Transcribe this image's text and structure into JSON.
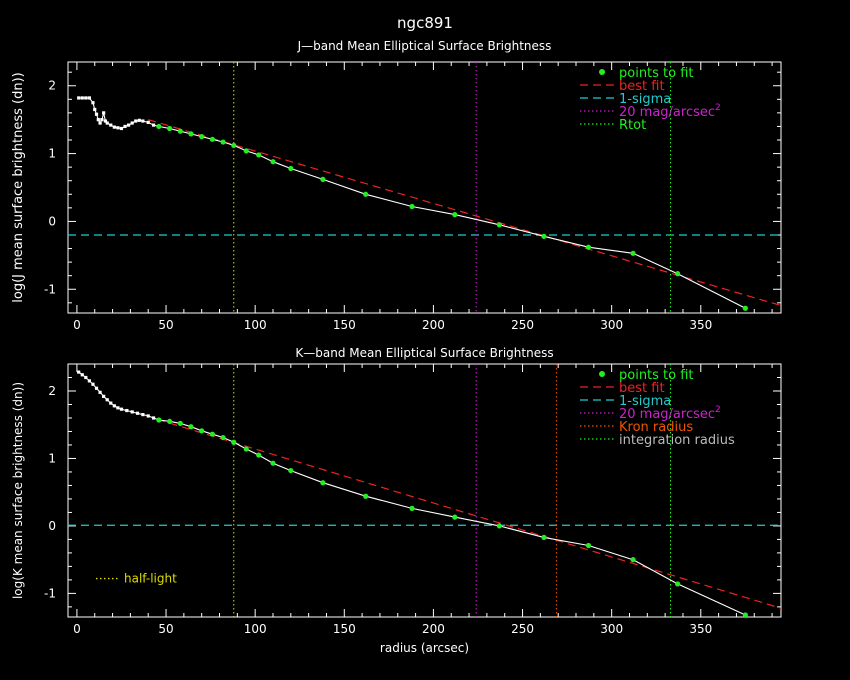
{
  "title": "ngc891",
  "colors": {
    "background": "#000000",
    "axes": "#ffffff",
    "data": "#ffffff",
    "fit_points": "#22ee22",
    "best_fit": "#ee2222",
    "sigma": "#22cccc",
    "mag20": "#cc22cc",
    "rtot": "#22ee22",
    "kron": "#ee5500",
    "integration": "#22ee22",
    "half_light": "#dddd00"
  },
  "chart_data": [
    {
      "type": "line",
      "title": "J—band Mean Elliptical Surface Brightness",
      "ylabel": "log(J mean surface brightness (dn))",
      "xlabel": "",
      "xlim": [
        -5,
        395
      ],
      "ylim": [
        -1.35,
        2.35
      ],
      "x_ticks": [
        "0",
        "50",
        "100",
        "150",
        "200",
        "250",
        "300",
        "350"
      ],
      "y_ticks": [
        "-1",
        "0",
        "1",
        "2"
      ],
      "legend": [
        "points to fit",
        "best fit",
        "1-sigma",
        "20 mag/arcsec",
        "Rtot"
      ],
      "legend_position": "top-right",
      "one_sigma": -0.2,
      "vlines": {
        "mag20": 224,
        "rtot": [
          88,
          333
        ]
      },
      "best_fit": [
        [
          40,
          1.5
        ],
        [
          395,
          -1.24
        ]
      ],
      "profile_inner": [
        [
          1,
          1.82
        ],
        [
          3,
          1.82
        ],
        [
          5,
          1.82
        ],
        [
          7,
          1.82
        ],
        [
          9,
          1.75
        ],
        [
          10,
          1.65
        ],
        [
          11,
          1.58
        ],
        [
          12,
          1.5
        ],
        [
          13,
          1.45
        ],
        [
          14,
          1.5
        ],
        [
          15,
          1.6
        ],
        [
          16,
          1.48
        ],
        [
          17,
          1.45
        ],
        [
          19,
          1.42
        ],
        [
          21,
          1.39
        ],
        [
          23,
          1.38
        ],
        [
          25,
          1.37
        ],
        [
          27,
          1.4
        ],
        [
          29,
          1.42
        ],
        [
          31,
          1.45
        ],
        [
          33,
          1.48
        ],
        [
          35,
          1.49
        ],
        [
          37,
          1.48
        ],
        [
          40,
          1.46
        ],
        [
          43,
          1.42
        ]
      ],
      "fit_points": [
        [
          46,
          1.4
        ],
        [
          52,
          1.37
        ],
        [
          58,
          1.33
        ],
        [
          64,
          1.29
        ],
        [
          70,
          1.25
        ],
        [
          76,
          1.21
        ],
        [
          82,
          1.17
        ],
        [
          88,
          1.12
        ],
        [
          95,
          1.04
        ],
        [
          102,
          0.98
        ],
        [
          110,
          0.88
        ],
        [
          120,
          0.78
        ],
        [
          138,
          0.62
        ],
        [
          162,
          0.4
        ],
        [
          188,
          0.22
        ],
        [
          212,
          0.1
        ],
        [
          237,
          -0.05
        ],
        [
          262,
          -0.22
        ],
        [
          287,
          -0.38
        ],
        [
          312,
          -0.47
        ],
        [
          337,
          -0.77
        ],
        [
          375,
          -1.28
        ]
      ]
    },
    {
      "type": "line",
      "title": "K—band Mean Elliptical Surface Brightness",
      "ylabel": "log(K mean surface brightness (dn))",
      "xlabel": "radius (arcsec)",
      "xlim": [
        -5,
        395
      ],
      "ylim": [
        -1.35,
        2.4
      ],
      "x_ticks": [
        "0",
        "50",
        "100",
        "150",
        "200",
        "250",
        "300",
        "350"
      ],
      "y_ticks": [
        "-1",
        "0",
        "1",
        "2"
      ],
      "legend": [
        "points to fit",
        "best fit",
        "1-sigma",
        "20 mag/arcsec",
        "Kron radius",
        "integration radius"
      ],
      "legend_position": "top-right",
      "half_light_label": "half-light",
      "one_sigma": 0.01,
      "vlines": {
        "mag20": 224,
        "kron": 269,
        "integration": [
          88,
          333
        ]
      },
      "best_fit": [
        [
          45,
          1.58
        ],
        [
          395,
          -1.22
        ]
      ],
      "profile_inner": [
        [
          1,
          2.28
        ],
        [
          3,
          2.24
        ],
        [
          5,
          2.2
        ],
        [
          7,
          2.15
        ],
        [
          9,
          2.1
        ],
        [
          11,
          2.04
        ],
        [
          13,
          1.98
        ],
        [
          15,
          1.92
        ],
        [
          17,
          1.87
        ],
        [
          19,
          1.82
        ],
        [
          21,
          1.78
        ],
        [
          23,
          1.75
        ],
        [
          25,
          1.73
        ],
        [
          28,
          1.71
        ],
        [
          31,
          1.69
        ],
        [
          34,
          1.67
        ],
        [
          37,
          1.65
        ],
        [
          40,
          1.63
        ],
        [
          43,
          1.6
        ]
      ],
      "fit_points": [
        [
          46,
          1.57
        ],
        [
          52,
          1.55
        ],
        [
          58,
          1.52
        ],
        [
          64,
          1.47
        ],
        [
          70,
          1.41
        ],
        [
          76,
          1.36
        ],
        [
          82,
          1.31
        ],
        [
          88,
          1.24
        ],
        [
          95,
          1.14
        ],
        [
          102,
          1.05
        ],
        [
          110,
          0.93
        ],
        [
          120,
          0.82
        ],
        [
          138,
          0.64
        ],
        [
          162,
          0.44
        ],
        [
          188,
          0.26
        ],
        [
          212,
          0.13
        ],
        [
          237,
          0.0
        ],
        [
          262,
          -0.17
        ],
        [
          287,
          -0.29
        ],
        [
          312,
          -0.5
        ],
        [
          337,
          -0.86
        ],
        [
          375,
          -1.32
        ]
      ]
    }
  ]
}
